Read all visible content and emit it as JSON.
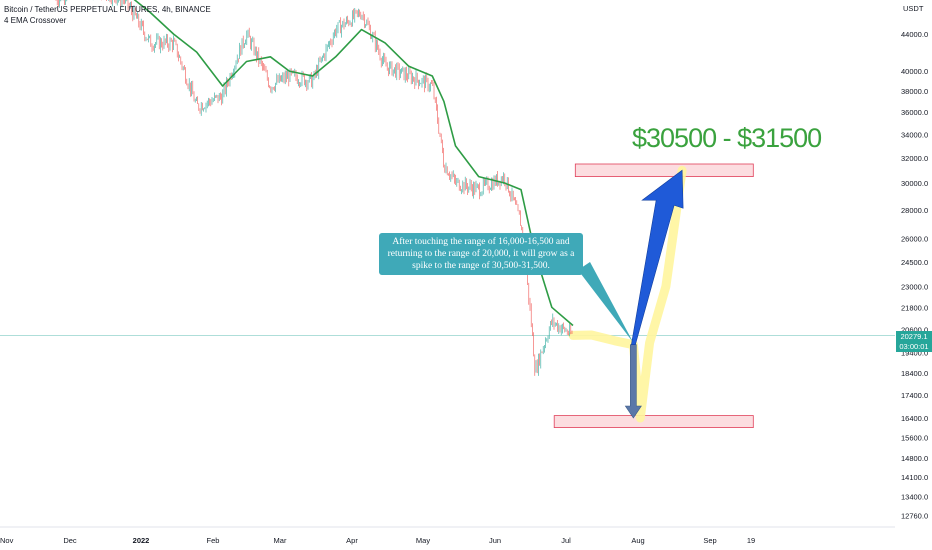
{
  "header": {
    "symbol_line": "Bitcoin / TetherUS PERPETUAL FUTURES, 4h, BINANCE",
    "indicator": "4 EMA Crossover"
  },
  "price_axis": {
    "currency": "USDT",
    "ticks": [
      "44000.0",
      "40000.0",
      "38000.0",
      "36000.0",
      "34000.0",
      "32000.0",
      "30000.0",
      "28000.0",
      "26000.0",
      "24500.0",
      "23000.0",
      "21800.0",
      "20600.0",
      "19400.0",
      "18400.0",
      "17400.0",
      "16400.0",
      "15600.0",
      "14800.0",
      "14100.0",
      "13400.0",
      "12760.0"
    ],
    "current_price": "20279.1",
    "countdown": "03:00:01"
  },
  "time_axis": {
    "ticks": [
      "Nov",
      "Dec",
      "2022",
      "Feb",
      "Mar",
      "Apr",
      "May",
      "Jun",
      "Jul",
      "Aug",
      "Sep",
      "19"
    ]
  },
  "annotations": {
    "target_text": "$30500 - $31500",
    "callout_text": "After touching the range of 16,000-16,500 and returning to the range of 20,000, it will grow as a spike to the range of 30,500-31,500."
  },
  "chart_data": {
    "type": "line",
    "title": "Bitcoin / TetherUS PERPETUAL FUTURES, 4h, BINANCE",
    "xlabel": "",
    "ylabel": "",
    "y_scale": "log",
    "ylim": [
      12500,
      50000
    ],
    "x": [
      "2021-11-25",
      "2021-12-05",
      "2021-12-15",
      "2021-12-25",
      "2022-01-05",
      "2022-01-15",
      "2022-01-25",
      "2022-02-05",
      "2022-02-15",
      "2022-02-25",
      "2022-03-05",
      "2022-03-15",
      "2022-03-25",
      "2022-04-05",
      "2022-04-15",
      "2022-04-25",
      "2022-05-05",
      "2022-05-10",
      "2022-05-15",
      "2022-05-25",
      "2022-06-05",
      "2022-06-12",
      "2022-06-18",
      "2022-06-25",
      "2022-07-04"
    ],
    "series": [
      {
        "name": "price",
        "values": [
          48000,
          50000,
          49000,
          48000,
          43000,
          43000,
          36500,
          37500,
          44000,
          38500,
          39500,
          39000,
          44500,
          46500,
          40500,
          39500,
          38500,
          31500,
          30000,
          29500,
          30500,
          27000,
          18500,
          21000,
          20279
        ]
      },
      {
        "name": "ema",
        "values": [
          50000,
          50000,
          49500,
          49000,
          46500,
          44000,
          42000,
          38500,
          41000,
          41500,
          40000,
          39500,
          41500,
          44500,
          43000,
          40500,
          39500,
          37000,
          33000,
          30500,
          30000,
          29500,
          25000,
          21800,
          20800
        ]
      }
    ],
    "projection": {
      "path": [
        [
          "2022-07-04",
          20279
        ],
        [
          "2022-07-12",
          20300
        ],
        [
          "2022-07-22",
          20000
        ],
        [
          "2022-07-30",
          19800
        ],
        [
          "2022-08-02",
          16400
        ],
        [
          "2022-08-06",
          19900
        ],
        [
          "2022-08-13",
          23000
        ],
        [
          "2022-08-20",
          31000
        ]
      ],
      "down_target": 16400,
      "up_target": 31000
    },
    "zones": [
      {
        "low": 30500,
        "high": 31500,
        "from": "2022-07-05",
        "to": "2022-09-20"
      },
      {
        "low": 16000,
        "high": 16500,
        "from": "2022-06-26",
        "to": "2022-09-20"
      }
    ],
    "colors": {
      "up": "#26a69a",
      "down": "#ef5350",
      "ema": "#2e9c45",
      "zone": "#f48f98",
      "arrow_up": "#1f5ad8",
      "arrow_down": "#5b78a8",
      "projection": "#fff59d",
      "callout": "#3fa9b8",
      "target_text": "#3aa23e"
    }
  }
}
